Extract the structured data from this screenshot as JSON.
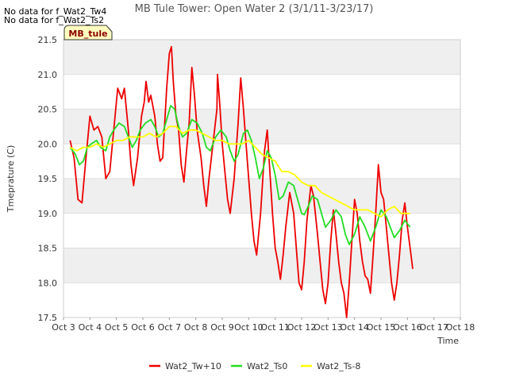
{
  "notes": [
    "No data for f_Wat2_Tw4",
    "No data for f_Wat2_Ts2"
  ],
  "badge": "MB_tule",
  "chart_data": {
    "type": "line",
    "title": "MB Tule Tower: Open Water 2 (3/1/11-3/23/17)",
    "xlabel": "Time",
    "ylabel": "Tmeprature (C)",
    "x_ticks": [
      "Oct 3",
      "Oct 4",
      "Oct 5",
      "Oct 6",
      "Oct 7",
      "Oct 8",
      "Oct 9",
      "Oct 10",
      "Oct 11",
      "Oct 12",
      "Oct 13",
      "Oct 14",
      "Oct 15",
      "Oct 16",
      "Oct 17",
      "Oct 18"
    ],
    "xlim": [
      3,
      18
    ],
    "ylim": [
      17.5,
      21.5
    ],
    "y_ticks": [
      "17.5",
      "18.0",
      "18.5",
      "19.0",
      "19.5",
      "20.0",
      "20.5",
      "21.0",
      "21.5"
    ],
    "grid": true,
    "legend": "bottom-center",
    "series": [
      {
        "name": "Wat2_Tw+10",
        "color": "#ee0000",
        "points": [
          [
            3.25,
            20.05
          ],
          [
            3.4,
            19.8
          ],
          [
            3.55,
            19.2
          ],
          [
            3.7,
            19.15
          ],
          [
            3.85,
            19.8
          ],
          [
            4.0,
            20.4
          ],
          [
            4.15,
            20.2
          ],
          [
            4.3,
            20.25
          ],
          [
            4.45,
            20.1
          ],
          [
            4.6,
            19.5
          ],
          [
            4.75,
            19.6
          ],
          [
            4.9,
            20.2
          ],
          [
            5.05,
            20.8
          ],
          [
            5.2,
            20.65
          ],
          [
            5.3,
            20.8
          ],
          [
            5.45,
            20.2
          ],
          [
            5.55,
            19.7
          ],
          [
            5.65,
            19.4
          ],
          [
            5.8,
            19.8
          ],
          [
            5.95,
            20.4
          ],
          [
            6.05,
            20.6
          ],
          [
            6.12,
            20.9
          ],
          [
            6.22,
            20.6
          ],
          [
            6.3,
            20.7
          ],
          [
            6.45,
            20.4
          ],
          [
            6.55,
            20.0
          ],
          [
            6.65,
            19.75
          ],
          [
            6.75,
            19.8
          ],
          [
            6.9,
            20.8
          ],
          [
            7.0,
            21.3
          ],
          [
            7.08,
            21.4
          ],
          [
            7.15,
            20.9
          ],
          [
            7.25,
            20.4
          ],
          [
            7.35,
            20.2
          ],
          [
            7.45,
            19.7
          ],
          [
            7.55,
            19.45
          ],
          [
            7.65,
            19.9
          ],
          [
            7.75,
            20.3
          ],
          [
            7.85,
            21.1
          ],
          [
            7.95,
            20.7
          ],
          [
            8.05,
            20.2
          ],
          [
            8.2,
            19.8
          ],
          [
            8.3,
            19.4
          ],
          [
            8.4,
            19.1
          ],
          [
            8.5,
            19.5
          ],
          [
            8.65,
            20.0
          ],
          [
            8.8,
            20.5
          ],
          [
            8.82,
            21.0
          ],
          [
            8.9,
            20.6
          ],
          [
            9.0,
            20.0
          ],
          [
            9.1,
            19.6
          ],
          [
            9.2,
            19.2
          ],
          [
            9.3,
            19.0
          ],
          [
            9.45,
            19.5
          ],
          [
            9.6,
            20.3
          ],
          [
            9.7,
            20.95
          ],
          [
            9.8,
            20.5
          ],
          [
            9.9,
            20.0
          ],
          [
            10.0,
            19.5
          ],
          [
            10.1,
            19.0
          ],
          [
            10.2,
            18.6
          ],
          [
            10.3,
            18.4
          ],
          [
            10.45,
            19.0
          ],
          [
            10.6,
            19.9
          ],
          [
            10.7,
            20.2
          ],
          [
            10.8,
            19.6
          ],
          [
            10.9,
            19.0
          ],
          [
            11.0,
            18.5
          ],
          [
            11.1,
            18.3
          ],
          [
            11.2,
            18.05
          ],
          [
            11.3,
            18.4
          ],
          [
            11.4,
            18.8
          ],
          [
            11.55,
            19.3
          ],
          [
            11.7,
            19.0
          ],
          [
            11.8,
            18.5
          ],
          [
            11.9,
            18.0
          ],
          [
            12.0,
            17.9
          ],
          [
            12.1,
            18.3
          ],
          [
            12.2,
            18.9
          ],
          [
            12.35,
            19.4
          ],
          [
            12.45,
            19.25
          ],
          [
            12.6,
            18.7
          ],
          [
            12.7,
            18.3
          ],
          [
            12.8,
            17.9
          ],
          [
            12.9,
            17.7
          ],
          [
            13.0,
            18.0
          ],
          [
            13.1,
            18.6
          ],
          [
            13.2,
            19.05
          ],
          [
            13.3,
            18.7
          ],
          [
            13.4,
            18.3
          ],
          [
            13.5,
            18.0
          ],
          [
            13.6,
            17.85
          ],
          [
            13.7,
            17.5
          ],
          [
            13.8,
            18.0
          ],
          [
            13.9,
            18.6
          ],
          [
            14.0,
            19.2
          ],
          [
            14.1,
            19.0
          ],
          [
            14.2,
            18.6
          ],
          [
            14.3,
            18.3
          ],
          [
            14.4,
            18.1
          ],
          [
            14.5,
            18.05
          ],
          [
            14.6,
            17.85
          ],
          [
            14.7,
            18.4
          ],
          [
            14.8,
            19.0
          ],
          [
            14.9,
            19.7
          ],
          [
            15.0,
            19.3
          ],
          [
            15.1,
            19.2
          ],
          [
            15.2,
            18.8
          ],
          [
            15.3,
            18.4
          ],
          [
            15.4,
            18.0
          ],
          [
            15.5,
            17.75
          ],
          [
            15.6,
            18.0
          ],
          [
            15.7,
            18.4
          ],
          [
            15.8,
            18.9
          ],
          [
            15.9,
            19.15
          ],
          [
            16.0,
            18.8
          ],
          [
            16.1,
            18.5
          ],
          [
            16.2,
            18.2
          ]
        ]
      },
      {
        "name": "Wat2_Ts0",
        "color": "#22dd22",
        "points": [
          [
            3.25,
            19.95
          ],
          [
            3.45,
            19.85
          ],
          [
            3.6,
            19.7
          ],
          [
            3.75,
            19.75
          ],
          [
            3.9,
            19.95
          ],
          [
            4.05,
            20.0
          ],
          [
            4.25,
            20.05
          ],
          [
            4.4,
            19.95
          ],
          [
            4.6,
            19.9
          ],
          [
            4.75,
            20.1
          ],
          [
            4.9,
            20.2
          ],
          [
            5.1,
            20.3
          ],
          [
            5.3,
            20.25
          ],
          [
            5.45,
            20.1
          ],
          [
            5.6,
            19.95
          ],
          [
            5.75,
            20.05
          ],
          [
            5.9,
            20.2
          ],
          [
            6.1,
            20.3
          ],
          [
            6.3,
            20.35
          ],
          [
            6.45,
            20.25
          ],
          [
            6.6,
            20.1
          ],
          [
            6.75,
            20.15
          ],
          [
            6.9,
            20.35
          ],
          [
            7.05,
            20.55
          ],
          [
            7.2,
            20.5
          ],
          [
            7.35,
            20.25
          ],
          [
            7.5,
            20.1
          ],
          [
            7.65,
            20.15
          ],
          [
            7.85,
            20.35
          ],
          [
            8.05,
            20.3
          ],
          [
            8.25,
            20.15
          ],
          [
            8.4,
            19.95
          ],
          [
            8.55,
            19.9
          ],
          [
            8.75,
            20.1
          ],
          [
            8.95,
            20.2
          ],
          [
            9.15,
            20.1
          ],
          [
            9.3,
            19.9
          ],
          [
            9.45,
            19.75
          ],
          [
            9.6,
            19.85
          ],
          [
            9.8,
            20.15
          ],
          [
            9.95,
            20.2
          ],
          [
            10.1,
            20.05
          ],
          [
            10.25,
            19.8
          ],
          [
            10.4,
            19.5
          ],
          [
            10.55,
            19.65
          ],
          [
            10.7,
            19.9
          ],
          [
            10.85,
            19.8
          ],
          [
            11.0,
            19.55
          ],
          [
            11.15,
            19.2
          ],
          [
            11.3,
            19.25
          ],
          [
            11.5,
            19.45
          ],
          [
            11.7,
            19.4
          ],
          [
            11.85,
            19.2
          ],
          [
            12.0,
            19.0
          ],
          [
            12.1,
            18.98
          ],
          [
            12.25,
            19.1
          ],
          [
            12.4,
            19.25
          ],
          [
            12.6,
            19.2
          ],
          [
            12.75,
            19.0
          ],
          [
            12.9,
            18.8
          ],
          [
            13.1,
            18.9
          ],
          [
            13.3,
            19.05
          ],
          [
            13.5,
            18.95
          ],
          [
            13.65,
            18.7
          ],
          [
            13.8,
            18.55
          ],
          [
            14.0,
            18.7
          ],
          [
            14.2,
            18.95
          ],
          [
            14.4,
            18.8
          ],
          [
            14.6,
            18.6
          ],
          [
            14.8,
            18.8
          ],
          [
            15.0,
            19.05
          ],
          [
            15.2,
            18.95
          ],
          [
            15.35,
            18.8
          ],
          [
            15.5,
            18.65
          ],
          [
            15.7,
            18.75
          ],
          [
            15.9,
            18.9
          ],
          [
            16.0,
            18.85
          ],
          [
            16.1,
            18.8
          ]
        ]
      },
      {
        "name": "Wat2_Ts-8",
        "color": "#ffff00",
        "points": [
          [
            3.25,
            19.95
          ],
          [
            3.5,
            19.9
          ],
          [
            3.75,
            19.95
          ],
          [
            4.0,
            19.95
          ],
          [
            4.25,
            20.0
          ],
          [
            4.5,
            19.95
          ],
          [
            4.75,
            20.0
          ],
          [
            5.0,
            20.05
          ],
          [
            5.25,
            20.05
          ],
          [
            5.5,
            20.1
          ],
          [
            5.75,
            20.1
          ],
          [
            6.0,
            20.1
          ],
          [
            6.25,
            20.15
          ],
          [
            6.5,
            20.1
          ],
          [
            6.75,
            20.15
          ],
          [
            7.0,
            20.25
          ],
          [
            7.25,
            20.25
          ],
          [
            7.5,
            20.15
          ],
          [
            7.75,
            20.2
          ],
          [
            8.0,
            20.2
          ],
          [
            8.25,
            20.15
          ],
          [
            8.5,
            20.1
          ],
          [
            8.75,
            20.05
          ],
          [
            9.0,
            20.05
          ],
          [
            9.25,
            20.0
          ],
          [
            9.5,
            20.0
          ],
          [
            9.75,
            20.0
          ],
          [
            10.0,
            20.05
          ],
          [
            10.25,
            19.95
          ],
          [
            10.5,
            19.85
          ],
          [
            10.75,
            19.8
          ],
          [
            11.0,
            19.75
          ],
          [
            11.25,
            19.6
          ],
          [
            11.5,
            19.6
          ],
          [
            11.75,
            19.55
          ],
          [
            12.0,
            19.45
          ],
          [
            12.25,
            19.4
          ],
          [
            12.5,
            19.4
          ],
          [
            12.75,
            19.3
          ],
          [
            13.0,
            19.25
          ],
          [
            13.25,
            19.2
          ],
          [
            13.5,
            19.15
          ],
          [
            13.75,
            19.1
          ],
          [
            14.0,
            19.05
          ],
          [
            14.25,
            19.05
          ],
          [
            14.5,
            19.05
          ],
          [
            14.75,
            19.0
          ],
          [
            15.0,
            18.95
          ],
          [
            15.25,
            19.05
          ],
          [
            15.5,
            19.1
          ],
          [
            15.75,
            19.0
          ],
          [
            16.0,
            19.0
          ],
          [
            16.1,
            19.0
          ]
        ]
      }
    ]
  }
}
